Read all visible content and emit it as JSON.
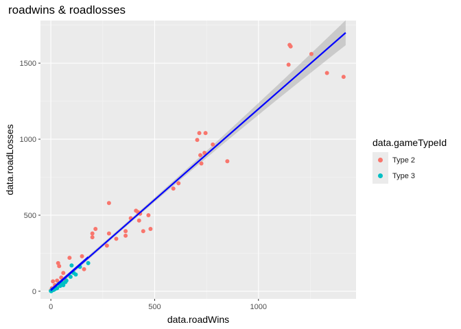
{
  "chart_data": {
    "type": "scatter",
    "title": "roadwins & roadlosses",
    "xlabel": "data.roadWins",
    "ylabel": "data.roadLosses",
    "xlim": [
      -50,
      1470
    ],
    "ylim": [
      -50,
      1780
    ],
    "x_ticks": [
      0,
      500,
      1000
    ],
    "y_ticks": [
      0,
      500,
      1000,
      1500
    ],
    "legend_title": "data.gameTypeId",
    "legend_position": "right",
    "grid": true,
    "series": [
      {
        "name": "Type 2",
        "color": "#F8766D",
        "points": [
          [
            1150,
            1620
          ],
          [
            1155,
            1610
          ],
          [
            1145,
            1490
          ],
          [
            1255,
            1560
          ],
          [
            1330,
            1435
          ],
          [
            1410,
            1410
          ],
          [
            705,
            995
          ],
          [
            715,
            1040
          ],
          [
            745,
            1040
          ],
          [
            720,
            895
          ],
          [
            725,
            840
          ],
          [
            740,
            910
          ],
          [
            850,
            855
          ],
          [
            780,
            965
          ],
          [
            590,
            675
          ],
          [
            615,
            710
          ],
          [
            280,
            580
          ],
          [
            420,
            520
          ],
          [
            430,
            510
          ],
          [
            410,
            530
          ],
          [
            385,
            480
          ],
          [
            470,
            500
          ],
          [
            480,
            410
          ],
          [
            445,
            395
          ],
          [
            425,
            465
          ],
          [
            360,
            395
          ],
          [
            360,
            365
          ],
          [
            315,
            345
          ],
          [
            280,
            380
          ],
          [
            270,
            300
          ],
          [
            215,
            410
          ],
          [
            200,
            380
          ],
          [
            200,
            355
          ],
          [
            150,
            230
          ],
          [
            160,
            145
          ],
          [
            90,
            220
          ],
          [
            35,
            185
          ],
          [
            40,
            165
          ],
          [
            60,
            120
          ],
          [
            50,
            90
          ],
          [
            70,
            75
          ],
          [
            30,
            70
          ],
          [
            10,
            65
          ],
          [
            20,
            40
          ],
          [
            5,
            20
          ],
          [
            0,
            5
          ],
          [
            15,
            10
          ],
          [
            55,
            45
          ]
        ]
      },
      {
        "name": "Type 3",
        "color": "#00BFC4",
        "points": [
          [
            180,
            185
          ],
          [
            100,
            170
          ],
          [
            140,
            160
          ],
          [
            95,
            95
          ],
          [
            110,
            120
          ],
          [
            70,
            60
          ],
          [
            60,
            40
          ],
          [
            45,
            35
          ],
          [
            30,
            20
          ],
          [
            25,
            25
          ],
          [
            15,
            10
          ],
          [
            10,
            8
          ],
          [
            5,
            5
          ],
          [
            0,
            2
          ],
          [
            2,
            0
          ],
          [
            8,
            12
          ],
          [
            20,
            15
          ],
          [
            40,
            50
          ],
          [
            55,
            55
          ],
          [
            75,
            70
          ],
          [
            120,
            110
          ]
        ]
      }
    ],
    "fit_lines": [
      {
        "color": "#0000FF",
        "x": [
          0,
          1420
        ],
        "y": [
          5,
          1700
        ],
        "band_color": "#999999"
      },
      {
        "color": "#0000FF",
        "x": [
          0,
          180
        ],
        "y": [
          10,
          225
        ]
      }
    ]
  }
}
